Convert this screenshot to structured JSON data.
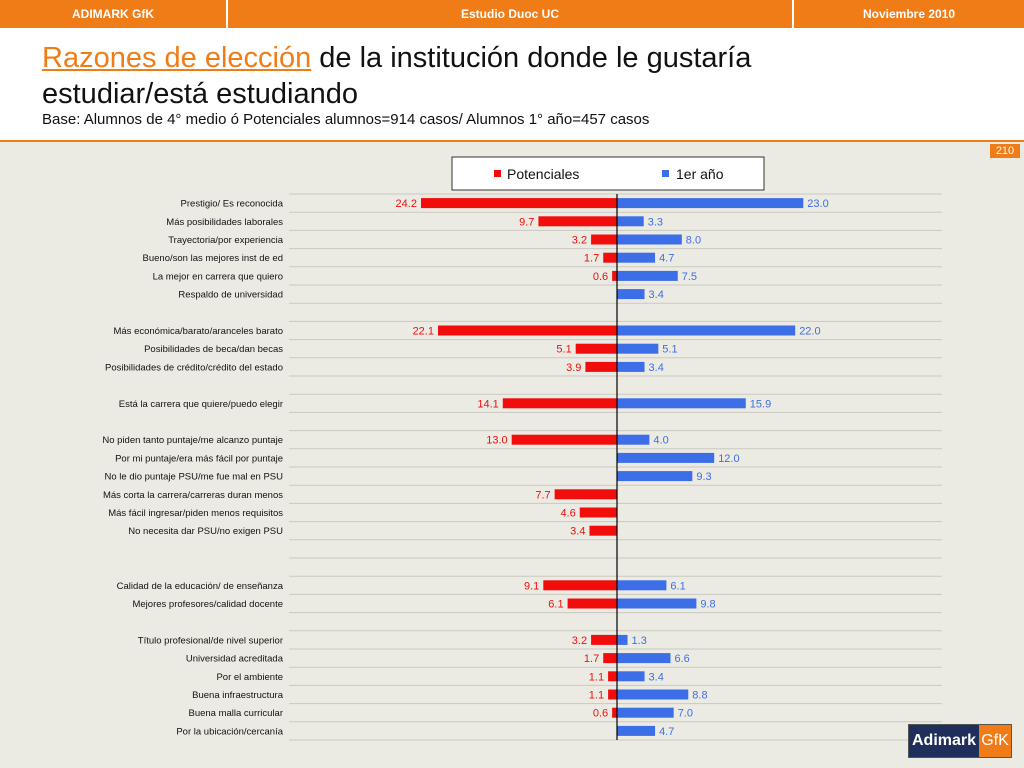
{
  "header": {
    "left": "ADIMARK GfK",
    "center": "Estudio Duoc UC",
    "right": "Noviembre 2010",
    "title_highlight": "Razones de elección",
    "title_rest": " de la institución donde le gustaría estudiar/está estudiando",
    "subtitle": "Base: Alumnos de 4° medio ó Potenciales alumnos=914 casos/ Alumnos 1° año=457 casos",
    "page_number": "210"
  },
  "logo": {
    "left": "Adimark",
    "right": "GfK"
  },
  "colors": {
    "potenciales": "#f20d0d",
    "primer_anio": "#3c6ee8",
    "accent": "#f07c17"
  },
  "chart_data": {
    "type": "bar",
    "orientation": "horizontal-diverging",
    "legend_position": "top",
    "series": [
      {
        "name": "Potenciales",
        "values": [
          24.2,
          9.7,
          3.2,
          1.7,
          0.6,
          null,
          null,
          22.1,
          5.1,
          3.9,
          null,
          14.1,
          null,
          13.0,
          null,
          null,
          7.7,
          4.6,
          3.4,
          null,
          null,
          9.1,
          6.1,
          null,
          3.2,
          1.7,
          1.1,
          1.1,
          0.6,
          null
        ]
      },
      {
        "name": "1er año",
        "values": [
          23.0,
          3.3,
          8.0,
          4.7,
          7.5,
          3.4,
          null,
          22.0,
          5.1,
          3.4,
          null,
          15.9,
          null,
          4.0,
          12.0,
          9.3,
          null,
          null,
          null,
          null,
          null,
          6.1,
          9.8,
          null,
          1.3,
          6.6,
          3.4,
          8.8,
          7.0,
          4.7
        ]
      }
    ],
    "categories": [
      "Prestigio/ Es reconocida",
      "Más posibilidades laborales",
      "Trayectoria/por experiencia",
      "Bueno/son las mejores inst de ed",
      "La mejor en carrera que quiero",
      "Respaldo de universidad",
      "",
      "Más económica/barato/aranceles barato",
      "Posibilidades de beca/dan becas",
      "Posibilidades de crédito/crédito del estado",
      "",
      "Está la carrera que quiere/puedo elegir",
      "",
      "No piden tanto puntaje/me alcanzo puntaje",
      "Por mi puntaje/era más fácil por puntaje",
      "No le dio puntaje PSU/me fue mal en PSU",
      "Más corta la carrera/carreras duran menos",
      "Más fácil ingresar/piden menos requisitos",
      "No necesita dar PSU/no exigen PSU",
      "",
      "",
      "Calidad de la educación/ de enseñanza",
      "Mejores profesores/calidad docente",
      "",
      "Título profesional/de nivel superior",
      "Universidad acreditada",
      "Por el ambiente",
      "Buena infraestructura",
      "Buena malla curricular",
      "Por la ubicación/cercanía"
    ]
  }
}
